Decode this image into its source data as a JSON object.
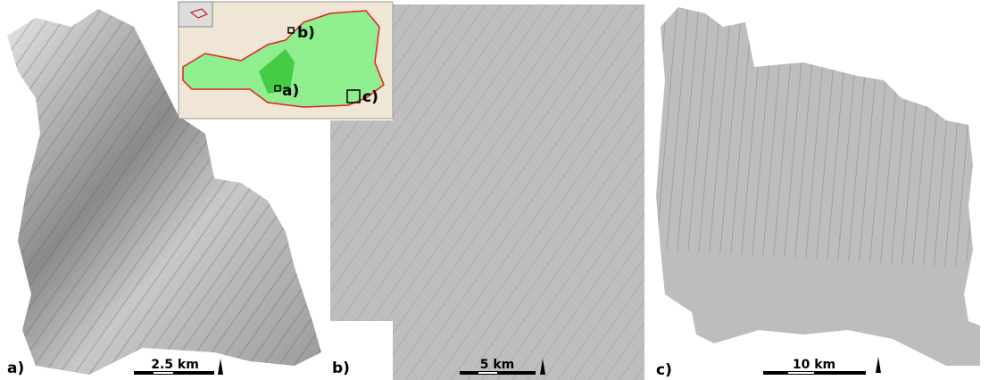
{
  "panels": [
    {
      "label": "a)",
      "scale": "2.5 km"
    },
    {
      "label": "b)",
      "scale": "5 km"
    },
    {
      "label": "c)",
      "scale": "10 km"
    }
  ],
  "inset": {
    "labels": [
      "a)",
      "b)",
      "c)"
    ]
  }
}
